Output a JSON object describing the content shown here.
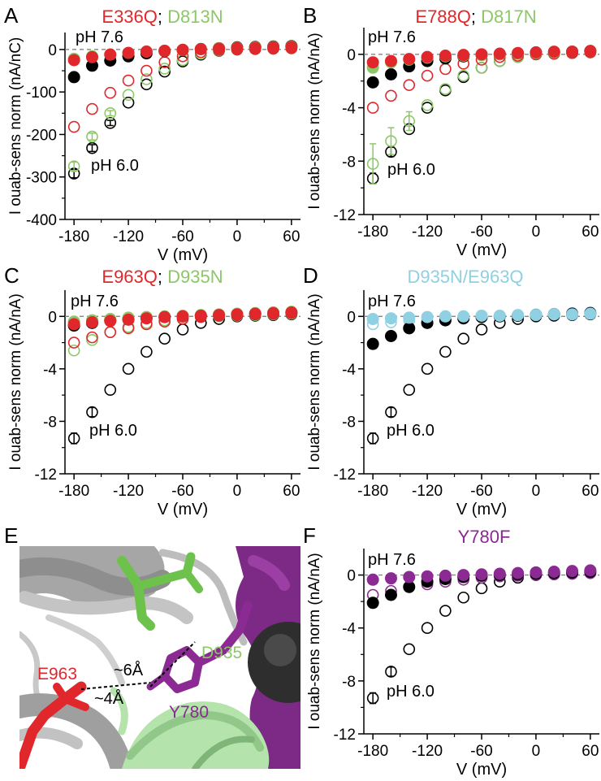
{
  "colors": {
    "black": "#000000",
    "red": "#e0282c",
    "green": "#8cc866",
    "cyan": "#8fd0e3",
    "purple": "#8a2a92",
    "gray": "#b9b9b9",
    "pale_green": "#b4e3ac"
  },
  "x_ticks": [
    "-180",
    "-120",
    "-60",
    "0",
    "60"
  ],
  "chart_data": [
    {
      "panel": "A",
      "type": "scatter",
      "title_parts": [
        {
          "text": "E336Q",
          "color": "#e0282c"
        },
        {
          "text": "; ",
          "color": "#000000"
        },
        {
          "text": "D813N",
          "color": "#8cc866"
        }
      ],
      "xlabel": "V (mV)",
      "ylabel": "I ouab-sens norm (nA/nC)",
      "xlim": [
        -190,
        70
      ],
      "ylim": [
        -400,
        40
      ],
      "y_ticks": [
        0,
        -100,
        -200,
        -300,
        -400
      ],
      "y_tick_labels": [
        "0",
        "-100",
        "-200",
        "-300",
        "-400"
      ],
      "annotations": {
        "ph_high": "pH 7.6",
        "ph_low": "pH 6.0"
      },
      "x": [
        -180,
        -160,
        -140,
        -120,
        -100,
        -80,
        -60,
        -40,
        -20,
        0,
        20,
        40,
        60
      ],
      "series": [
        {
          "color": "#000000",
          "filled": false,
          "values": [
            -292,
            -232,
            -173,
            -125,
            -82,
            -52,
            -28,
            -12,
            -3,
            0,
            1,
            2,
            3
          ],
          "errors": [
            10,
            8,
            6,
            0,
            0,
            0,
            0,
            0,
            0,
            0,
            0,
            0,
            0
          ]
        },
        {
          "color": "#8cc866",
          "filled": false,
          "values": [
            -275,
            -205,
            -150,
            -107,
            -70,
            -45,
            -25,
            -10,
            -2,
            0,
            1,
            2,
            3
          ],
          "errors": [
            10,
            8,
            6,
            0,
            0,
            0,
            0,
            0,
            0,
            0,
            0,
            0,
            0
          ]
        },
        {
          "color": "#e0282c",
          "filled": false,
          "values": [
            -182,
            -140,
            -102,
            -73,
            -50,
            -30,
            -16,
            -6,
            -1,
            0,
            1,
            2,
            3
          ],
          "errors": [
            0,
            0,
            0,
            0,
            0,
            0,
            0,
            0,
            0,
            0,
            0,
            0,
            0
          ]
        },
        {
          "color": "#000000",
          "filled": true,
          "values": [
            -65,
            -38,
            -26,
            -16,
            -9,
            -4,
            -1,
            1,
            3,
            5,
            6,
            7,
            8
          ],
          "errors": [
            0,
            0,
            0,
            0,
            0,
            0,
            0,
            0,
            0,
            0,
            0,
            0,
            0
          ]
        },
        {
          "color": "#8cc866",
          "filled": true,
          "values": [
            -22,
            -16,
            -12,
            -8,
            -5,
            -3,
            -1,
            1,
            3,
            4,
            5,
            6,
            7
          ],
          "errors": [
            0,
            0,
            0,
            0,
            0,
            0,
            0,
            0,
            0,
            0,
            0,
            0,
            0
          ]
        },
        {
          "color": "#e0282c",
          "filled": true,
          "values": [
            -25,
            -18,
            -12,
            -8,
            -5,
            -3,
            -1,
            1,
            2,
            3,
            4,
            5,
            6
          ],
          "errors": [
            0,
            0,
            0,
            0,
            0,
            0,
            0,
            0,
            0,
            0,
            0,
            0,
            0
          ]
        }
      ]
    },
    {
      "panel": "B",
      "type": "scatter",
      "title_parts": [
        {
          "text": "E788Q",
          "color": "#e0282c"
        },
        {
          "text": "; ",
          "color": "#000000"
        },
        {
          "text": "D817N",
          "color": "#8cc866"
        }
      ],
      "xlabel": "V (mV)",
      "ylabel": "I ouab-sens norm (nA/nA)",
      "xlim": [
        -190,
        70
      ],
      "ylim": [
        -12,
        2
      ],
      "y_ticks": [
        0,
        -4,
        -8,
        -12
      ],
      "y_tick_labels": [
        "0",
        "-4",
        "-8",
        "-12"
      ],
      "annotations": {
        "ph_high": "pH 7.6",
        "ph_low": "pH 6.0"
      },
      "x": [
        -180,
        -160,
        -140,
        -120,
        -100,
        -80,
        -60,
        -40,
        -20,
        0,
        20,
        40,
        60
      ],
      "series": [
        {
          "color": "#000000",
          "filled": false,
          "values": [
            -9.3,
            -7.3,
            -5.6,
            -4.0,
            -2.7,
            -1.7,
            -1.0,
            -0.5,
            -0.2,
            0,
            0.05,
            0.1,
            0.15
          ],
          "errors": [
            0.4,
            0.35,
            0,
            0,
            0,
            0,
            0,
            0,
            0,
            0,
            0,
            0,
            0
          ]
        },
        {
          "color": "#8cc866",
          "filled": false,
          "values": [
            -8.2,
            -6.5,
            -5.0,
            -3.8,
            -2.6,
            -1.6,
            -1.0,
            -0.5,
            -0.2,
            0,
            0.05,
            0.1,
            0.15
          ],
          "errors": [
            1.5,
            1.0,
            0.7,
            0,
            0,
            0,
            0,
            0,
            0,
            0,
            0,
            0,
            0
          ]
        },
        {
          "color": "#e0282c",
          "filled": false,
          "values": [
            -4.0,
            -3.1,
            -2.3,
            -1.6,
            -1.1,
            -0.7,
            -0.4,
            -0.2,
            -0.1,
            0,
            0.05,
            0.1,
            0.15
          ],
          "errors": [
            0,
            0,
            0,
            0,
            0,
            0,
            0,
            0,
            0,
            0,
            0,
            0,
            0
          ]
        },
        {
          "color": "#000000",
          "filled": true,
          "values": [
            -2.1,
            -1.5,
            -0.9,
            -0.5,
            -0.3,
            -0.15,
            -0.05,
            0,
            0.05,
            0.1,
            0.15,
            0.2,
            0.25
          ],
          "errors": [
            0,
            0,
            0,
            0,
            0,
            0,
            0,
            0,
            0,
            0,
            0,
            0,
            0
          ]
        },
        {
          "color": "#8cc866",
          "filled": true,
          "values": [
            -1.0,
            -0.6,
            -0.4,
            -0.25,
            -0.15,
            -0.1,
            -0.05,
            0,
            0.05,
            0.1,
            0.15,
            0.2,
            0.25
          ],
          "errors": [
            0,
            0,
            0,
            0,
            0,
            0,
            0,
            0,
            0,
            0,
            0,
            0,
            0
          ]
        },
        {
          "color": "#e0282c",
          "filled": true,
          "values": [
            -0.6,
            -0.5,
            -0.35,
            -0.2,
            -0.1,
            -0.05,
            0,
            0.05,
            0.1,
            0.15,
            0.2,
            0.2,
            0.25
          ],
          "errors": [
            0,
            0,
            0,
            0,
            0,
            0,
            0,
            0,
            0,
            0,
            0,
            0,
            0
          ]
        }
      ]
    },
    {
      "panel": "C",
      "type": "scatter",
      "title_parts": [
        {
          "text": "E963Q",
          "color": "#e0282c"
        },
        {
          "text": "; ",
          "color": "#000000"
        },
        {
          "text": "D935N",
          "color": "#8cc866"
        }
      ],
      "xlabel": "V (mV)",
      "ylabel": "I ouab-sens norm (nA/nA)",
      "xlim": [
        -190,
        70
      ],
      "ylim": [
        -12,
        2
      ],
      "y_ticks": [
        0,
        -4,
        -8,
        -12
      ],
      "y_tick_labels": [
        "0",
        "-4",
        "-8",
        "-12"
      ],
      "annotations": {
        "ph_high": "pH 7.6",
        "ph_low": "pH 6.0"
      },
      "x": [
        -180,
        -160,
        -140,
        -120,
        -100,
        -80,
        -60,
        -40,
        -20,
        0,
        20,
        40,
        60
      ],
      "series": [
        {
          "color": "#000000",
          "filled": false,
          "values": [
            -9.3,
            -7.3,
            -5.6,
            -4.0,
            -2.7,
            -1.7,
            -1.0,
            -0.5,
            -0.2,
            0,
            0.05,
            0.1,
            0.15
          ],
          "errors": [
            0.4,
            0.35,
            0,
            0,
            0,
            0,
            0,
            0,
            0,
            0,
            0,
            0,
            0
          ]
        },
        {
          "color": "#8cc866",
          "filled": false,
          "values": [
            -2.6,
            -1.8,
            -1.2,
            -0.8,
            -0.5,
            -0.3,
            -0.15,
            -0.05,
            0,
            0.05,
            0.1,
            0.15,
            0.2
          ],
          "errors": [
            0,
            0,
            0,
            0,
            0,
            0,
            0,
            0,
            0,
            0,
            0,
            0,
            0
          ]
        },
        {
          "color": "#e0282c",
          "filled": false,
          "values": [
            -2.0,
            -1.6,
            -1.2,
            -0.9,
            -0.6,
            -0.4,
            -0.2,
            -0.05,
            0.05,
            0.1,
            0.15,
            0.2,
            0.25
          ],
          "errors": [
            0,
            0,
            0,
            0,
            0,
            0,
            0,
            0,
            0,
            0,
            0,
            0,
            0
          ]
        },
        {
          "color": "#000000",
          "filled": true,
          "values": [
            -0.7,
            -0.5,
            -0.3,
            -0.2,
            -0.1,
            -0.05,
            0,
            0.05,
            0.1,
            0.15,
            0.2,
            0.25,
            0.3
          ],
          "errors": [
            0,
            0,
            0,
            0,
            0,
            0,
            0,
            0,
            0,
            0,
            0,
            0,
            0
          ]
        },
        {
          "color": "#8cc866",
          "filled": true,
          "values": [
            -0.4,
            -0.3,
            -0.2,
            -0.1,
            -0.05,
            0,
            0.05,
            0.1,
            0.15,
            0.2,
            0.25,
            0.3,
            0.35
          ],
          "errors": [
            0,
            0,
            0,
            0,
            0,
            0,
            0,
            0,
            0,
            0,
            0,
            0,
            0
          ]
        },
        {
          "color": "#e0282c",
          "filled": true,
          "values": [
            -0.6,
            -0.45,
            -0.35,
            -0.25,
            -0.15,
            -0.05,
            0,
            0.05,
            0.1,
            0.15,
            0.2,
            0.25,
            0.3
          ],
          "errors": [
            0,
            0,
            0,
            0,
            0,
            0,
            0,
            0,
            0,
            0,
            0,
            0,
            0
          ]
        }
      ]
    },
    {
      "panel": "D",
      "type": "scatter",
      "title_parts": [
        {
          "text": "D935N/E963Q",
          "color": "#8fd0e3"
        }
      ],
      "xlabel": "V (mV)",
      "ylabel": "I ouab-sens norm (nA/nA)",
      "xlim": [
        -190,
        70
      ],
      "ylim": [
        -12,
        2
      ],
      "y_ticks": [
        0,
        -4,
        -8,
        -12
      ],
      "y_tick_labels": [
        "0",
        "-4",
        "-8",
        "-12"
      ],
      "annotations": {
        "ph_high": "pH 7.6",
        "ph_low": "pH 6.0"
      },
      "x": [
        -180,
        -160,
        -140,
        -120,
        -100,
        -80,
        -60,
        -40,
        -20,
        0,
        20,
        40,
        60
      ],
      "series": [
        {
          "color": "#000000",
          "filled": false,
          "values": [
            -9.3,
            -7.3,
            -5.6,
            -4.0,
            -2.7,
            -1.7,
            -1.0,
            -0.5,
            -0.2,
            0,
            0.05,
            0.1,
            0.15
          ],
          "errors": [
            0.4,
            0.35,
            0,
            0,
            0,
            0,
            0,
            0,
            0,
            0,
            0,
            0,
            0
          ]
        },
        {
          "color": "#8fd0e3",
          "filled": false,
          "values": [
            -0.6,
            -0.45,
            -0.3,
            -0.2,
            -0.1,
            -0.05,
            0,
            0.05,
            0.1,
            0.15,
            0.2,
            0.25,
            0.3
          ],
          "errors": [
            0,
            0,
            0,
            0,
            0,
            0,
            0,
            0,
            0,
            0,
            0,
            0,
            0
          ]
        },
        {
          "color": "#000000",
          "filled": true,
          "values": [
            -2.1,
            -1.5,
            -0.9,
            -0.5,
            -0.3,
            -0.15,
            -0.05,
            0,
            0.05,
            0.1,
            0.15,
            0.2,
            0.25
          ],
          "errors": [
            0,
            0,
            0,
            0,
            0,
            0,
            0,
            0,
            0,
            0,
            0,
            0,
            0
          ]
        },
        {
          "color": "#8fd0e3",
          "filled": true,
          "values": [
            -0.2,
            -0.15,
            -0.1,
            -0.05,
            0,
            0,
            0.05,
            0.05,
            0.1,
            0.1,
            0.15,
            0.15,
            0.2
          ],
          "errors": [
            0,
            0,
            0,
            0,
            0,
            0,
            0,
            0,
            0,
            0,
            0,
            0,
            0
          ]
        }
      ]
    },
    {
      "panel": "F",
      "type": "scatter",
      "title_parts": [
        {
          "text": "Y780F",
          "color": "#8a2a92"
        }
      ],
      "xlabel": "V (mV)",
      "ylabel": "I ouab-sens norm (nA/nA)",
      "xlim": [
        -190,
        70
      ],
      "ylim": [
        -12,
        2
      ],
      "y_ticks": [
        0,
        -4,
        -8,
        -12
      ],
      "y_tick_labels": [
        "0",
        "-4",
        "-8",
        "-12"
      ],
      "annotations": {
        "ph_high": "pH 7.6",
        "ph_low": "pH 6.0"
      },
      "x": [
        -180,
        -160,
        -140,
        -120,
        -100,
        -80,
        -60,
        -40,
        -20,
        0,
        20,
        40,
        60
      ],
      "series": [
        {
          "color": "#000000",
          "filled": false,
          "values": [
            -9.3,
            -7.3,
            -5.6,
            -4.0,
            -2.7,
            -1.7,
            -1.0,
            -0.5,
            -0.2,
            0,
            0.05,
            0.1,
            0.15
          ],
          "errors": [
            0.4,
            0.35,
            0,
            0,
            0,
            0,
            0,
            0,
            0,
            0,
            0,
            0,
            0
          ]
        },
        {
          "color": "#8a2a92",
          "filled": false,
          "values": [
            -1.5,
            -1.2,
            -0.9,
            -0.7,
            -0.5,
            -0.35,
            -0.2,
            -0.1,
            -0.05,
            0,
            0.05,
            0.1,
            0.15
          ],
          "errors": [
            0,
            0,
            0,
            0,
            0,
            0,
            0,
            0,
            0,
            0,
            0,
            0,
            0
          ]
        },
        {
          "color": "#000000",
          "filled": true,
          "values": [
            -2.1,
            -1.5,
            -0.9,
            -0.5,
            -0.3,
            -0.15,
            -0.05,
            0,
            0.05,
            0.1,
            0.15,
            0.2,
            0.25
          ],
          "errors": [
            0,
            0,
            0,
            0,
            0,
            0,
            0,
            0,
            0,
            0,
            0,
            0,
            0
          ]
        },
        {
          "color": "#8a2a92",
          "filled": true,
          "values": [
            -0.35,
            -0.25,
            -0.15,
            -0.1,
            -0.05,
            0,
            0.05,
            0.1,
            0.15,
            0.2,
            0.25,
            0.3,
            0.35
          ],
          "errors": [
            0,
            0,
            0,
            0,
            0,
            0,
            0,
            0,
            0,
            0,
            0,
            0,
            0
          ]
        }
      ]
    }
  ],
  "structure_panel": {
    "letter": "E",
    "labels": {
      "d935": "D935",
      "y780": "Y780",
      "e963": "E963",
      "dist6": "~6Å",
      "dist4": "~4Å"
    }
  }
}
